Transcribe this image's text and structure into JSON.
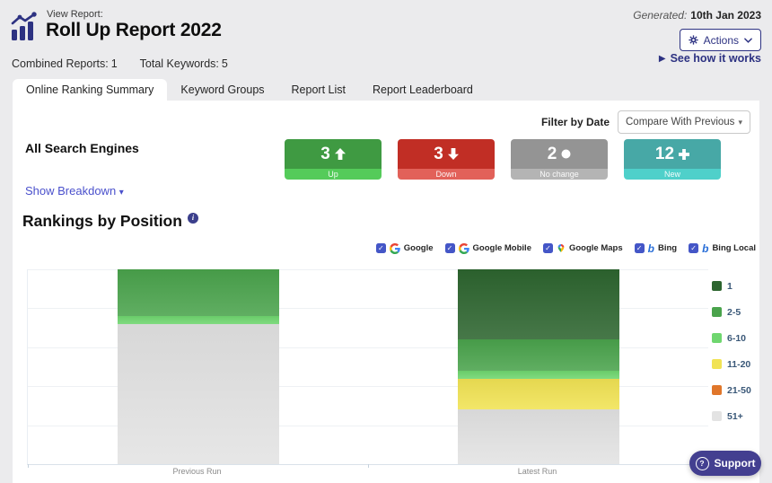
{
  "header": {
    "view_report_label": "View Report:",
    "title": "Roll Up Report 2022",
    "generated_label": "Generated:",
    "generated_date": "10th Jan 2023",
    "actions_label": "Actions",
    "see_how_it_works": "See how it works",
    "combined_reports_label": "Combined Reports:",
    "combined_reports_value": "1",
    "total_keywords_label": "Total Keywords:",
    "total_keywords_value": "5"
  },
  "tabs": [
    {
      "label": "Online Ranking Summary",
      "active": true
    },
    {
      "label": "Keyword Groups",
      "active": false
    },
    {
      "label": "Report List",
      "active": false
    },
    {
      "label": "Report Leaderboard",
      "active": false
    }
  ],
  "filter": {
    "label": "Filter by Date",
    "value": "Compare With Previous"
  },
  "summary": {
    "section_label": "All Search Engines",
    "show_breakdown_label": "Show Breakdown",
    "cards": [
      {
        "value": "3",
        "glyph": "up-arrow",
        "label": "Up",
        "color": "#3f9a42",
        "strip_color": "#55cb5a"
      },
      {
        "value": "3",
        "glyph": "down-arrow",
        "label": "Down",
        "color": "#c12e25",
        "strip_color": "#e26159"
      },
      {
        "value": "2",
        "glyph": "dot",
        "label": "No change",
        "color": "#949494",
        "strip_color": "#b4b4b4"
      },
      {
        "value": "12",
        "glyph": "plus",
        "label": "New",
        "color": "#47a8a6",
        "strip_color": "#4fd0ca"
      }
    ]
  },
  "rankings": {
    "title": "Rankings by Position",
    "engines": [
      {
        "label": "Google",
        "icon": "google",
        "checked": true
      },
      {
        "label": "Google Mobile",
        "icon": "google",
        "checked": true
      },
      {
        "label": "Google Maps",
        "icon": "maps-pin",
        "checked": true
      },
      {
        "label": "Bing",
        "icon": "bing",
        "checked": true
      },
      {
        "label": "Bing Local",
        "icon": "bing",
        "checked": true
      }
    ]
  },
  "chart_data": {
    "type": "bar",
    "stacked": true,
    "categories": [
      "Previous Run",
      "Latest Run"
    ],
    "series": [
      {
        "name": "1",
        "color": "#2d652f",
        "values": [
          0,
          9
        ]
      },
      {
        "name": "2-5",
        "color": "#4aa34c",
        "values": [
          6,
          4
        ]
      },
      {
        "name": "6-10",
        "color": "#6fd66f",
        "values": [
          1,
          1
        ]
      },
      {
        "name": "11-20",
        "color": "#f1e354",
        "values": [
          0,
          4
        ]
      },
      {
        "name": "21-50",
        "color": "#e0762a",
        "values": [
          0,
          0
        ]
      },
      {
        "name": "51+",
        "color": "#e3e3e3",
        "values": [
          18,
          7
        ]
      }
    ],
    "ylim": [
      0,
      25
    ],
    "gridlines": 5,
    "grid": true,
    "legend_position": "right"
  },
  "support_label": "Support"
}
